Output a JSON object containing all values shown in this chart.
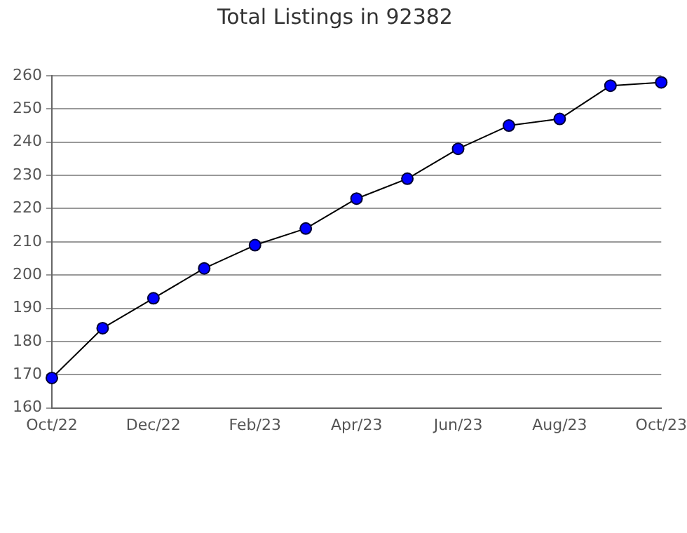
{
  "chart_data": {
    "type": "line",
    "title": "Total Listings in 92382",
    "categories": [
      "Oct/22",
      null,
      "Dec/22",
      null,
      "Feb/23",
      null,
      "Apr/23",
      null,
      "Jun/23",
      null,
      "Aug/23",
      null,
      "Oct/23"
    ],
    "series": [
      {
        "color": "#0000ff",
        "values": [
          169,
          184,
          193,
          202,
          209,
          214,
          223,
          229,
          238,
          245,
          247,
          257,
          258
        ]
      }
    ],
    "ylim": [
      160,
      260
    ],
    "yticks": [
      160,
      170,
      180,
      190,
      200,
      210,
      220,
      230,
      240,
      250,
      260
    ],
    "grid": "y",
    "legend": false,
    "marker": "circle",
    "line_style": "solid"
  }
}
